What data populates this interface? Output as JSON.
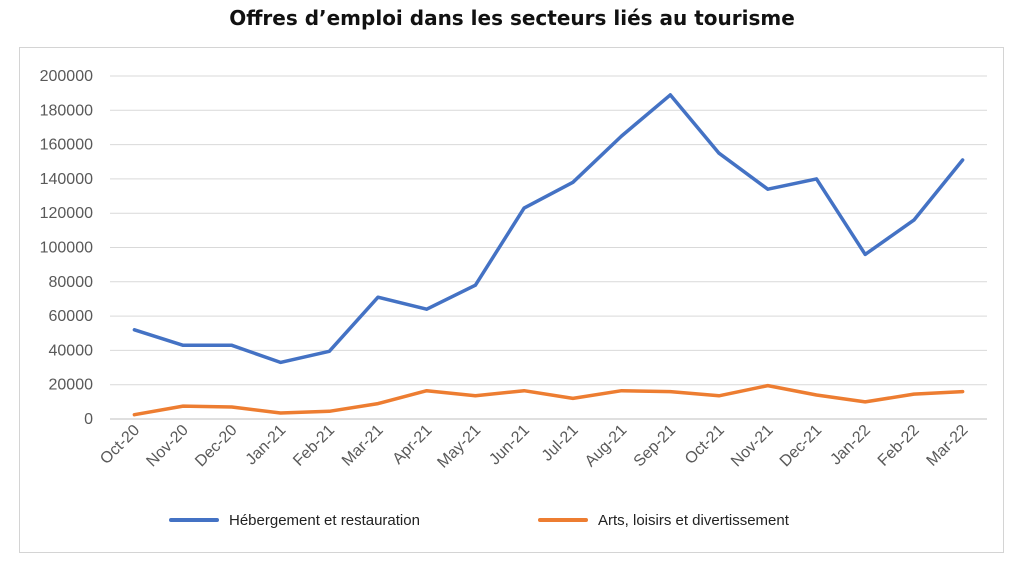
{
  "chart_data": {
    "type": "line",
    "title": "Offres d’emploi dans les secteurs liés au tourisme",
    "categories": [
      "Oct-20",
      "Nov-20",
      "Dec-20",
      "Jan-21",
      "Feb-21",
      "Mar-21",
      "Apr-21",
      "May-21",
      "Jun-21",
      "Jul-21",
      "Aug-21",
      "Sep-21",
      "Oct-21",
      "Nov-21",
      "Dec-21",
      "Jan-22",
      "Feb-22",
      "Mar-22"
    ],
    "series": [
      {
        "name": "Hébergement et restauration",
        "color": "#4472C4",
        "values": [
          52000,
          43000,
          43000,
          33000,
          39500,
          71000,
          64000,
          78000,
          123000,
          138000,
          165000,
          189000,
          155000,
          134000,
          140000,
          96000,
          116000,
          151000
        ]
      },
      {
        "name": "Arts, loisirs et divertissement",
        "color": "#ED7D31",
        "values": [
          2500,
          7500,
          7000,
          3500,
          4500,
          9000,
          16500,
          13500,
          16500,
          12000,
          16500,
          16000,
          13500,
          19500,
          14000,
          10000,
          14500,
          16000
        ]
      }
    ],
    "yticks": [
      "200000",
      "180000",
      "160000",
      "140000",
      "120000",
      "100000",
      "80000",
      "60000",
      "40000",
      "20000",
      "0"
    ],
    "ylim": [
      0,
      200000
    ],
    "xlabel": "",
    "ylabel": "",
    "grid": true,
    "legend": "bottom",
    "grid_color": "#d9d9d9"
  }
}
